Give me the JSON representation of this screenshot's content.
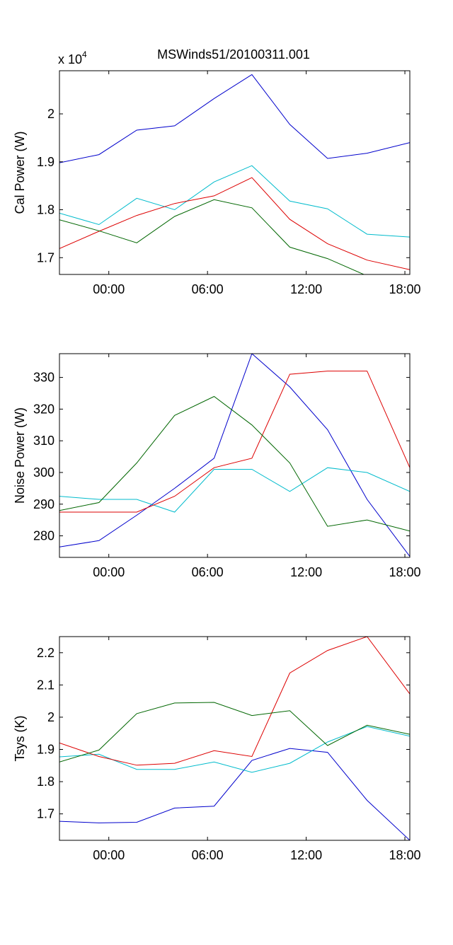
{
  "title": "MSWinds51/20100311.001",
  "chart_data": [
    {
      "type": "line",
      "ylabel": "Cal Power (W)",
      "y_exponent_label": "x 10",
      "y_exponent_power": "4",
      "x_ticks": [
        "00:00",
        "06:00",
        "12:00",
        "18:00"
      ],
      "x_tick_hours": [
        0,
        6,
        12,
        18
      ],
      "xlim_hours": [
        -3.0,
        18.3
      ],
      "y_ticks": [
        1.7,
        1.8,
        1.9,
        2.0
      ],
      "y_tick_labels": [
        "1.7",
        "1.8",
        "1.9",
        "2"
      ],
      "ylim": [
        1.665,
        2.09
      ],
      "x": [
        -3.0,
        -0.6,
        1.7,
        4.0,
        6.4,
        8.7,
        11.0,
        13.3,
        15.7,
        18.3
      ],
      "series": [
        {
          "color": "#0000cc",
          "values": [
            1.898,
            1.915,
            1.966,
            1.975,
            2.032,
            2.082,
            1.978,
            1.907,
            1.918,
            1.94
          ]
        },
        {
          "color": "#00bbcc",
          "values": [
            1.793,
            1.769,
            1.824,
            1.8,
            1.858,
            1.892,
            1.818,
            1.802,
            1.749,
            1.743
          ]
        },
        {
          "color": "#dd0000",
          "values": [
            1.719,
            1.755,
            1.788,
            1.813,
            1.829,
            1.867,
            1.78,
            1.729,
            1.695,
            1.675
          ]
        },
        {
          "color": "#006600",
          "values": [
            1.779,
            1.756,
            1.731,
            1.786,
            1.821,
            1.804,
            1.722,
            1.698,
            1.662,
            1.662
          ]
        }
      ]
    },
    {
      "type": "line",
      "ylabel": "Noise Power (W)",
      "x_ticks": [
        "00:00",
        "06:00",
        "12:00",
        "18:00"
      ],
      "x_tick_hours": [
        0,
        6,
        12,
        18
      ],
      "xlim_hours": [
        -3.0,
        18.3
      ],
      "y_ticks": [
        280,
        290,
        300,
        310,
        320,
        330
      ],
      "y_tick_labels": [
        "280",
        "290",
        "300",
        "310",
        "320",
        "330"
      ],
      "ylim": [
        273.2,
        337.5
      ],
      "x": [
        -3.0,
        -0.6,
        1.7,
        4.0,
        6.4,
        8.7,
        11.0,
        13.3,
        15.7,
        18.3
      ],
      "series": [
        {
          "color": "#0000cc",
          "values": [
            276.5,
            278.5,
            286.5,
            295.0,
            304.5,
            337.5,
            327.0,
            313.5,
            291.5,
            273.5
          ]
        },
        {
          "color": "#00bbcc",
          "values": [
            292.5,
            291.5,
            291.5,
            287.5,
            301.0,
            301.0,
            294.0,
            301.5,
            300.0,
            294.0
          ]
        },
        {
          "color": "#dd0000",
          "values": [
            287.5,
            287.5,
            287.5,
            292.5,
            301.5,
            304.5,
            331.0,
            332.0,
            332.0,
            301.5
          ]
        },
        {
          "color": "#006600",
          "values": [
            288.0,
            290.5,
            303.0,
            318.0,
            324.0,
            315.0,
            303.0,
            283.0,
            285.0,
            281.5
          ]
        }
      ]
    },
    {
      "type": "line",
      "ylabel": "Tsys (K)",
      "x_ticks": [
        "00:00",
        "06:00",
        "12:00",
        "18:00"
      ],
      "x_tick_hours": [
        0,
        6,
        12,
        18
      ],
      "xlim_hours": [
        -3.0,
        18.3
      ],
      "y_ticks": [
        1.7,
        1.8,
        1.9,
        2.0,
        2.1,
        2.2
      ],
      "y_tick_labels": [
        "1.7",
        "1.8",
        "1.9",
        "2",
        "2.1",
        "2.2"
      ],
      "ylim": [
        1.618,
        2.25
      ],
      "x": [
        -3.0,
        -0.6,
        1.7,
        4.0,
        6.4,
        8.7,
        11.0,
        13.3,
        15.7,
        18.3
      ],
      "series": [
        {
          "color": "#0000cc",
          "values": [
            1.677,
            1.672,
            1.674,
            1.718,
            1.724,
            1.866,
            1.903,
            1.891,
            1.742,
            1.618
          ]
        },
        {
          "color": "#00bbcc",
          "values": [
            1.877,
            1.885,
            1.838,
            1.838,
            1.861,
            1.829,
            1.857,
            1.923,
            1.971,
            1.941
          ]
        },
        {
          "color": "#dd0000",
          "values": [
            1.92,
            1.878,
            1.851,
            1.857,
            1.896,
            1.878,
            2.137,
            2.207,
            2.25,
            2.072
          ]
        },
        {
          "color": "#006600",
          "values": [
            1.861,
            1.898,
            2.011,
            2.044,
            2.046,
            2.005,
            2.02,
            1.912,
            1.975,
            1.947
          ]
        }
      ]
    }
  ]
}
